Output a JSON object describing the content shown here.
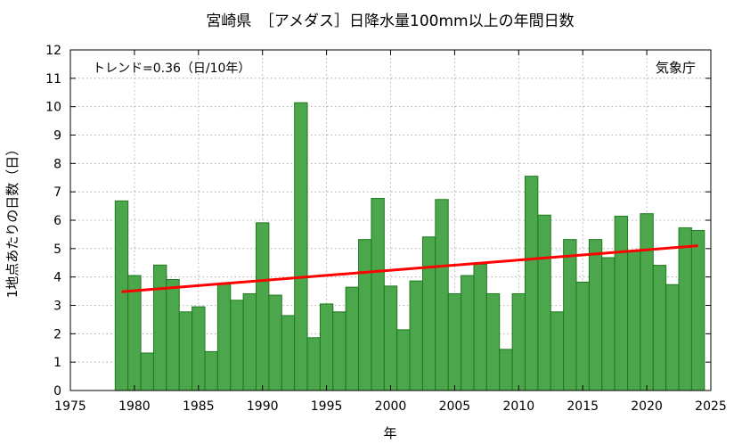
{
  "chart_data": {
    "type": "bar",
    "title": "宮崎県　［アメダス］日降水量100mm以上の年間日数",
    "xlabel": "年",
    "ylabel": "1地点あたりの日数（日）",
    "annotation": "トレンド=0.36（日/10年）",
    "source": "気象庁",
    "xlim": [
      1975,
      2025
    ],
    "ylim": [
      0,
      12
    ],
    "xticks": [
      1975,
      1980,
      1985,
      1990,
      1995,
      2000,
      2005,
      2010,
      2015,
      2020,
      2025
    ],
    "yticks": [
      0,
      1,
      2,
      3,
      4,
      5,
      6,
      7,
      8,
      9,
      10,
      11,
      12
    ],
    "grid": true,
    "bar_color": "#4ca64c",
    "bar_edge_color": "#1e7a1e",
    "trend_color": "#ff0000",
    "x": [
      1979,
      1980,
      1981,
      1982,
      1983,
      1984,
      1985,
      1986,
      1987,
      1988,
      1989,
      1990,
      1991,
      1992,
      1993,
      1994,
      1995,
      1996,
      1997,
      1998,
      1999,
      2000,
      2001,
      2002,
      2003,
      2004,
      2005,
      2006,
      2007,
      2008,
      2009,
      2010,
      2011,
      2012,
      2013,
      2014,
      2015,
      2016,
      2017,
      2018,
      2019,
      2020,
      2021,
      2022,
      2023,
      2024
    ],
    "values": [
      6.68,
      4.05,
      1.32,
      4.42,
      3.91,
      2.77,
      2.95,
      1.37,
      3.77,
      3.18,
      3.41,
      5.91,
      3.36,
      2.64,
      10.14,
      1.86,
      3.05,
      2.77,
      3.64,
      5.32,
      6.77,
      3.68,
      2.14,
      3.86,
      5.41,
      6.73,
      3.41,
      4.05,
      4.45,
      3.41,
      1.45,
      3.41,
      7.55,
      6.18,
      2.77,
      5.32,
      3.82,
      5.32,
      4.68,
      6.14,
      4.91,
      6.23,
      4.41,
      3.73,
      5.73,
      5.64
    ],
    "trend": {
      "x": [
        1979,
        2024
      ],
      "y": [
        3.48,
        5.1
      ]
    }
  }
}
